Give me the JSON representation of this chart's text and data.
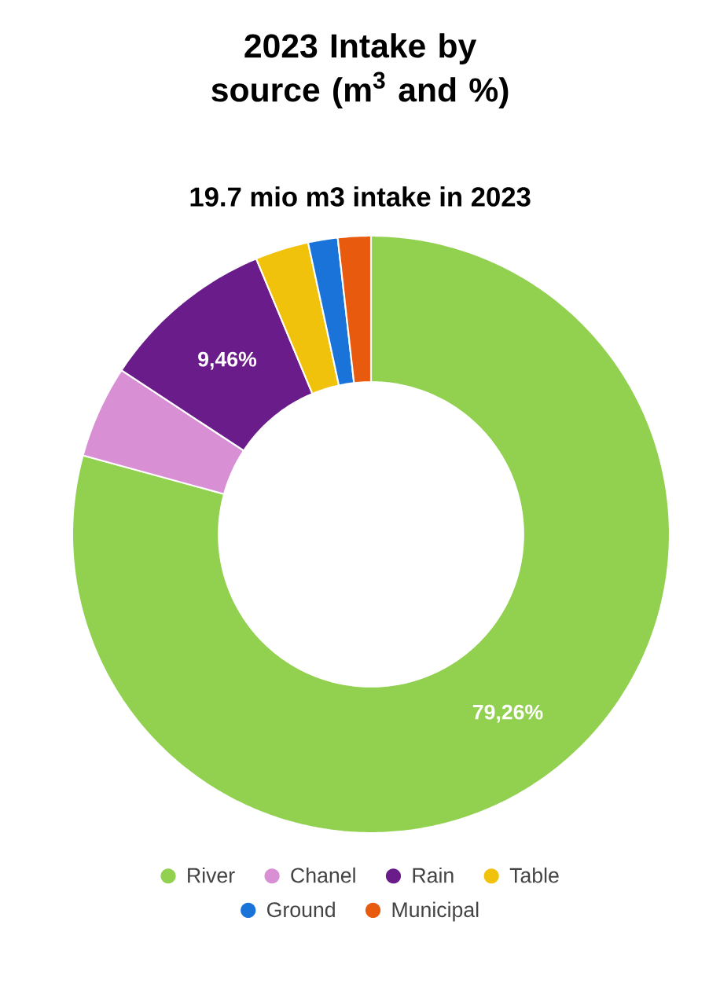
{
  "chart_data": {
    "type": "donut",
    "title": "2023 Intake by source (m$^{3}$ and %)",
    "subtitle": "19.7 mio m3 intake in 2023",
    "categories": [
      "River",
      "Chanel",
      "Rain",
      "Table",
      "Ground",
      "Municipal"
    ],
    "values": [
      79.26,
      5.0,
      9.46,
      2.9,
      1.6,
      1.78
    ],
    "colors": [
      "#92d050",
      "#d98fd4",
      "#6a1d8a",
      "#f0c20c",
      "#1a73d9",
      "#e85a0e"
    ],
    "value_labels": [
      "79,26%",
      null,
      "9,46%",
      null,
      null,
      null
    ],
    "legend": "bottom"
  }
}
